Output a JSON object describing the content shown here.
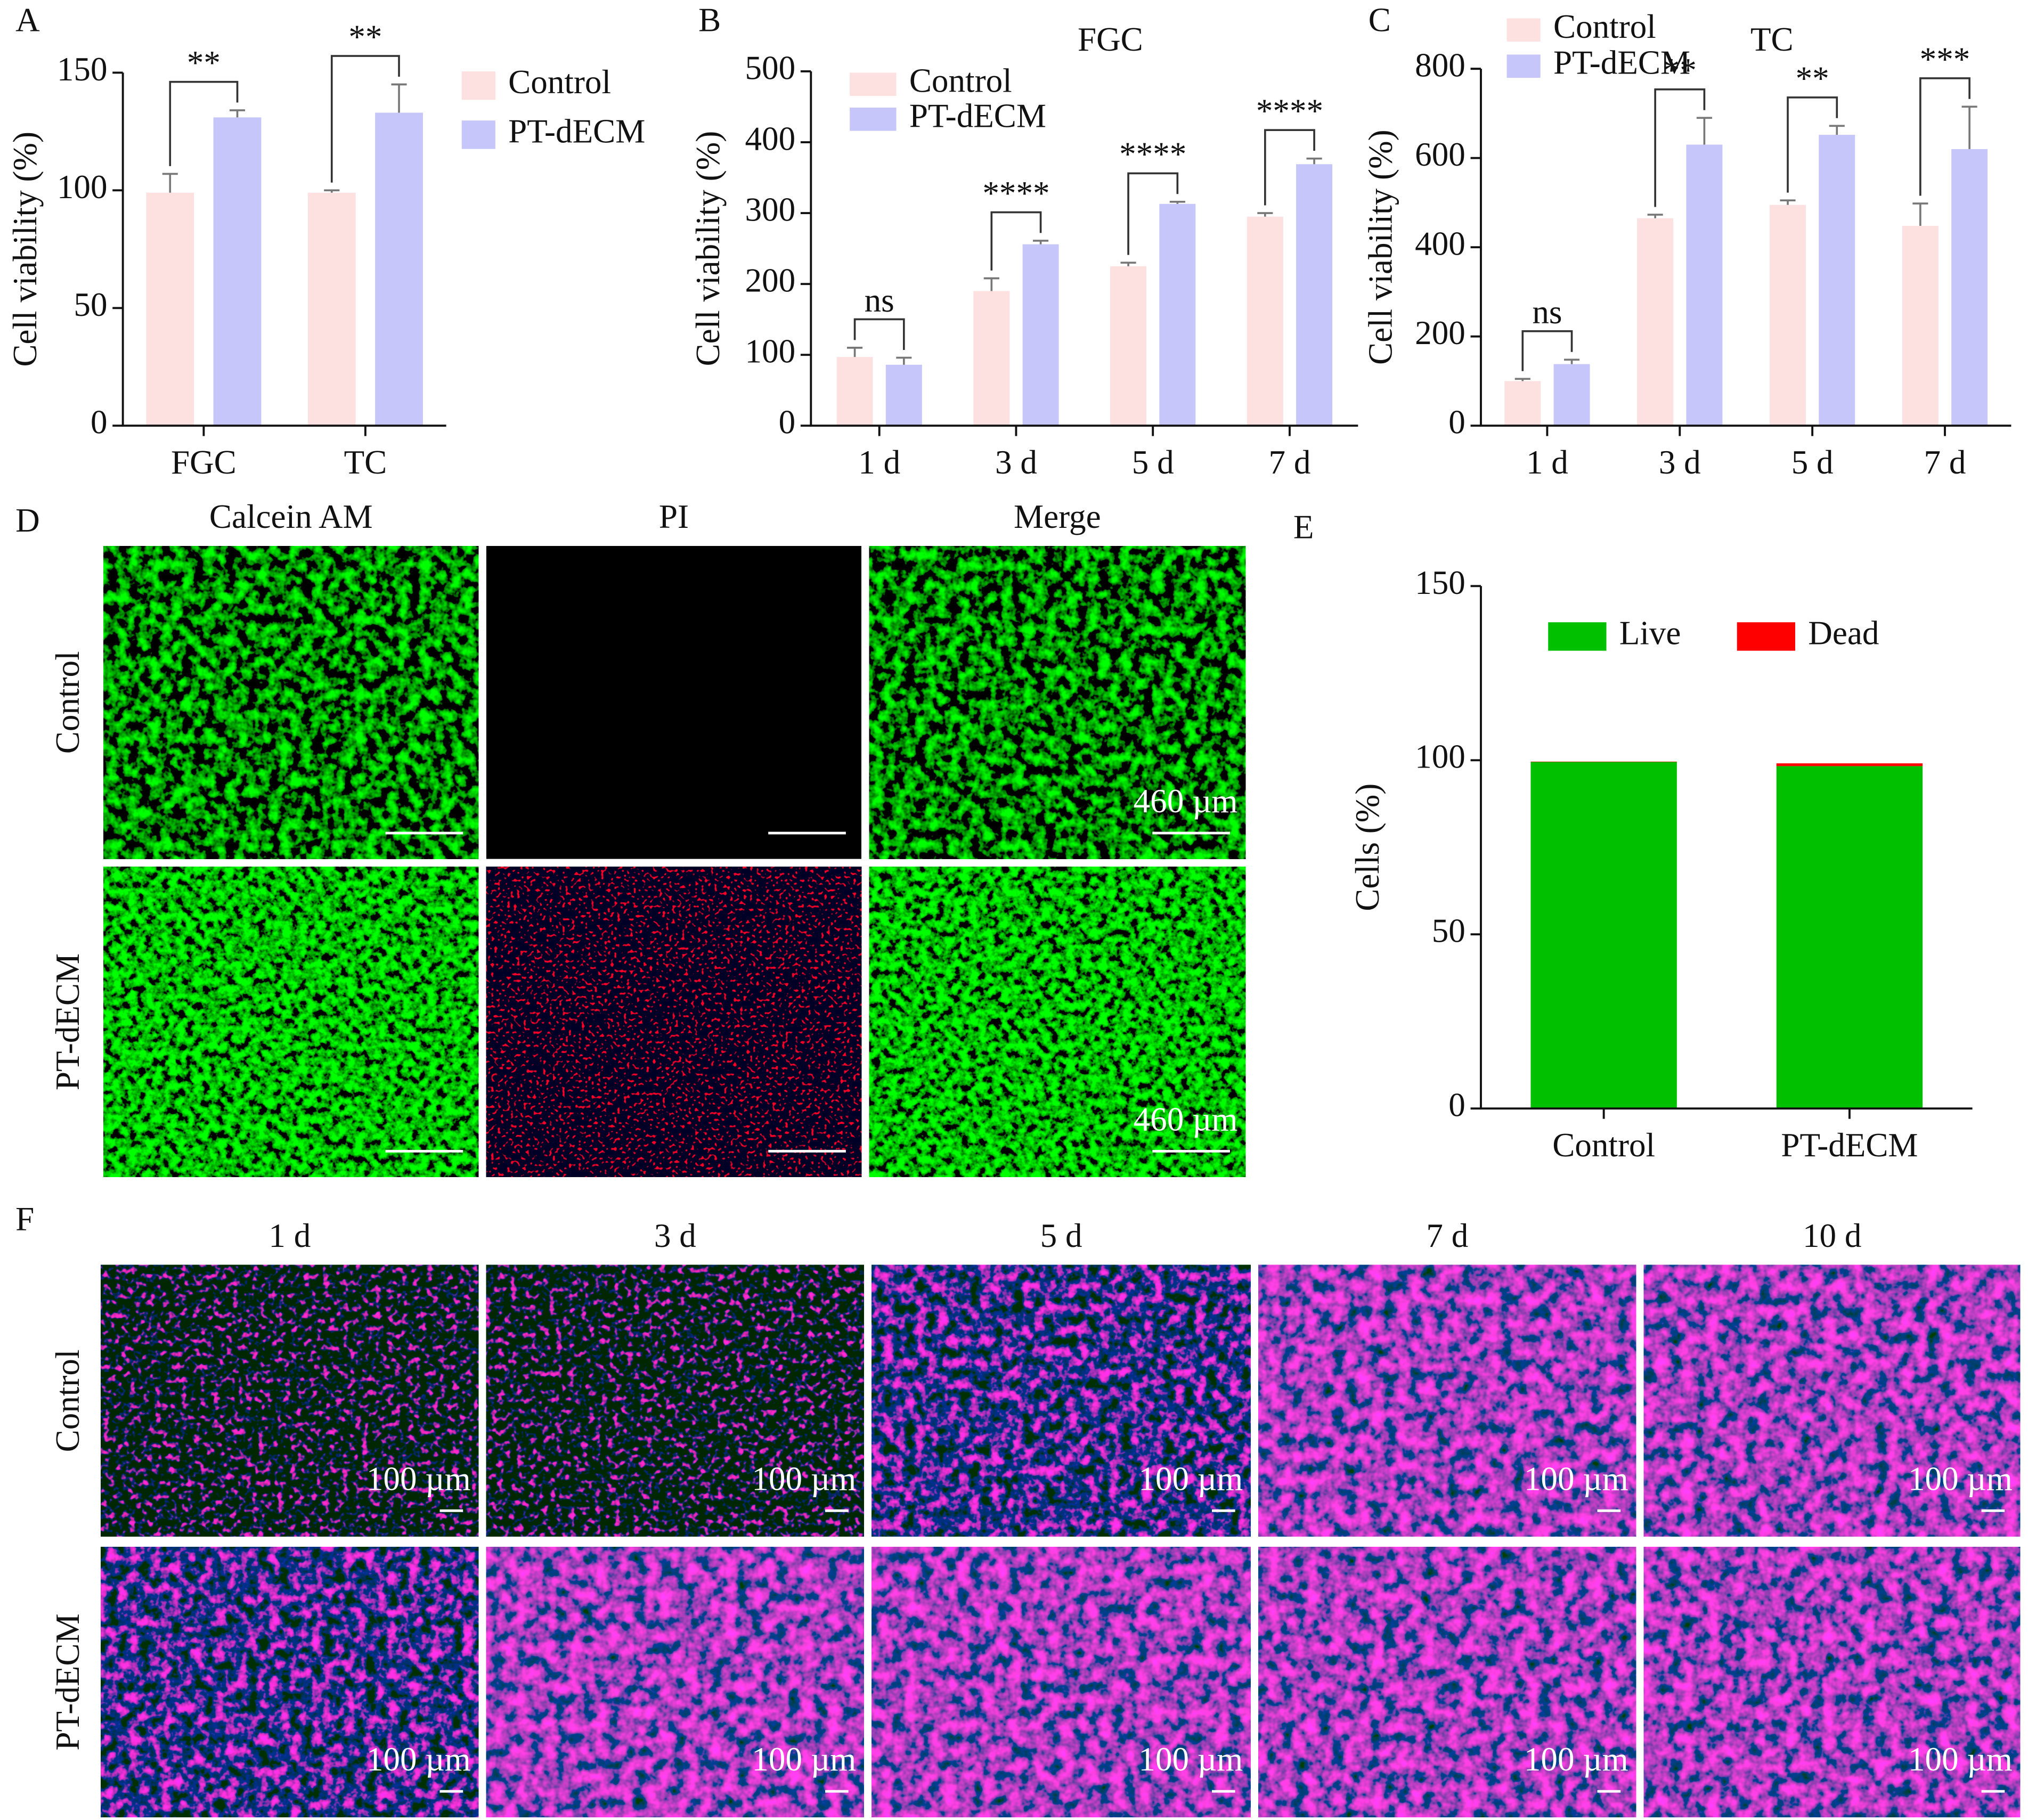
{
  "chart_data": [
    {
      "type": "bar",
      "label": "A",
      "ylabel": "Cell viability (%)",
      "categories": [
        "FGC",
        "TC"
      ],
      "series": [
        {
          "name": "Control",
          "color": "#fde0e0",
          "values": [
            99,
            99
          ],
          "errors": [
            8,
            1
          ]
        },
        {
          "name": "PT-dECM",
          "color": "#c6c6fa",
          "values": [
            131,
            133
          ],
          "errors": [
            3,
            12
          ]
        }
      ],
      "significance": [
        "**",
        "**"
      ],
      "ylim": [
        0,
        150
      ],
      "yticks": [
        0,
        50,
        100,
        150
      ],
      "legend": "right"
    },
    {
      "type": "bar",
      "label": "B",
      "title": "FGC",
      "ylabel": "Cell viability (%)",
      "categories": [
        "1 d",
        "3 d",
        "5 d",
        "7 d"
      ],
      "series": [
        {
          "name": "Control",
          "color": "#fde0e0",
          "values": [
            97,
            190,
            225,
            295
          ],
          "errors": [
            13,
            18,
            5,
            5
          ]
        },
        {
          "name": "PT-dECM",
          "color": "#c6c6fa",
          "values": [
            86,
            256,
            313,
            369
          ],
          "errors": [
            10,
            5,
            3,
            8
          ]
        }
      ],
      "significance": [
        "ns",
        "****",
        "****",
        "****"
      ],
      "ylim": [
        0,
        500
      ],
      "yticks": [
        0,
        100,
        200,
        300,
        400,
        500
      ],
      "legend": "upper left"
    },
    {
      "type": "bar",
      "label": "C",
      "title": "TC",
      "ylabel": "Cell viability (%)",
      "categories": [
        "1 d",
        "3 d",
        "5 d",
        "7 d"
      ],
      "series": [
        {
          "name": "Control",
          "color": "#fde0e0",
          "values": [
            100,
            465,
            495,
            448
          ],
          "errors": [
            5,
            8,
            10,
            50
          ]
        },
        {
          "name": "PT-dECM",
          "color": "#c6c6fa",
          "values": [
            138,
            630,
            652,
            620
          ],
          "errors": [
            10,
            60,
            20,
            95
          ]
        }
      ],
      "significance": [
        "ns",
        "**",
        "**",
        "***"
      ],
      "ylim": [
        0,
        800
      ],
      "yticks": [
        0,
        200,
        400,
        600,
        800
      ],
      "legend": "top"
    },
    {
      "type": "bar",
      "stacked": true,
      "label": "E",
      "ylabel": "Cells (%)",
      "categories": [
        "Control",
        "PT-dECM"
      ],
      "series": [
        {
          "name": "Live",
          "color": "#00c000",
          "values": [
            99.5,
            98.3
          ]
        },
        {
          "name": "Dead",
          "color": "#ff0000",
          "values": [
            0.1,
            0.8
          ]
        }
      ],
      "ylim": [
        0,
        150
      ],
      "yticks": [
        0,
        50,
        100,
        150
      ],
      "legend": "upper center"
    }
  ],
  "image_panels": [
    {
      "label": "D",
      "columns": [
        "Calcein AM",
        "PI",
        "Merge"
      ],
      "rows": [
        "Control",
        "PT-dECM"
      ],
      "scale_bar": "460 µm"
    },
    {
      "label": "F",
      "columns": [
        "1 d",
        "3 d",
        "5 d",
        "7 d",
        "10 d"
      ],
      "rows": [
        "Control",
        "PT-dECM"
      ],
      "scale_bar": "100 µm"
    }
  ]
}
